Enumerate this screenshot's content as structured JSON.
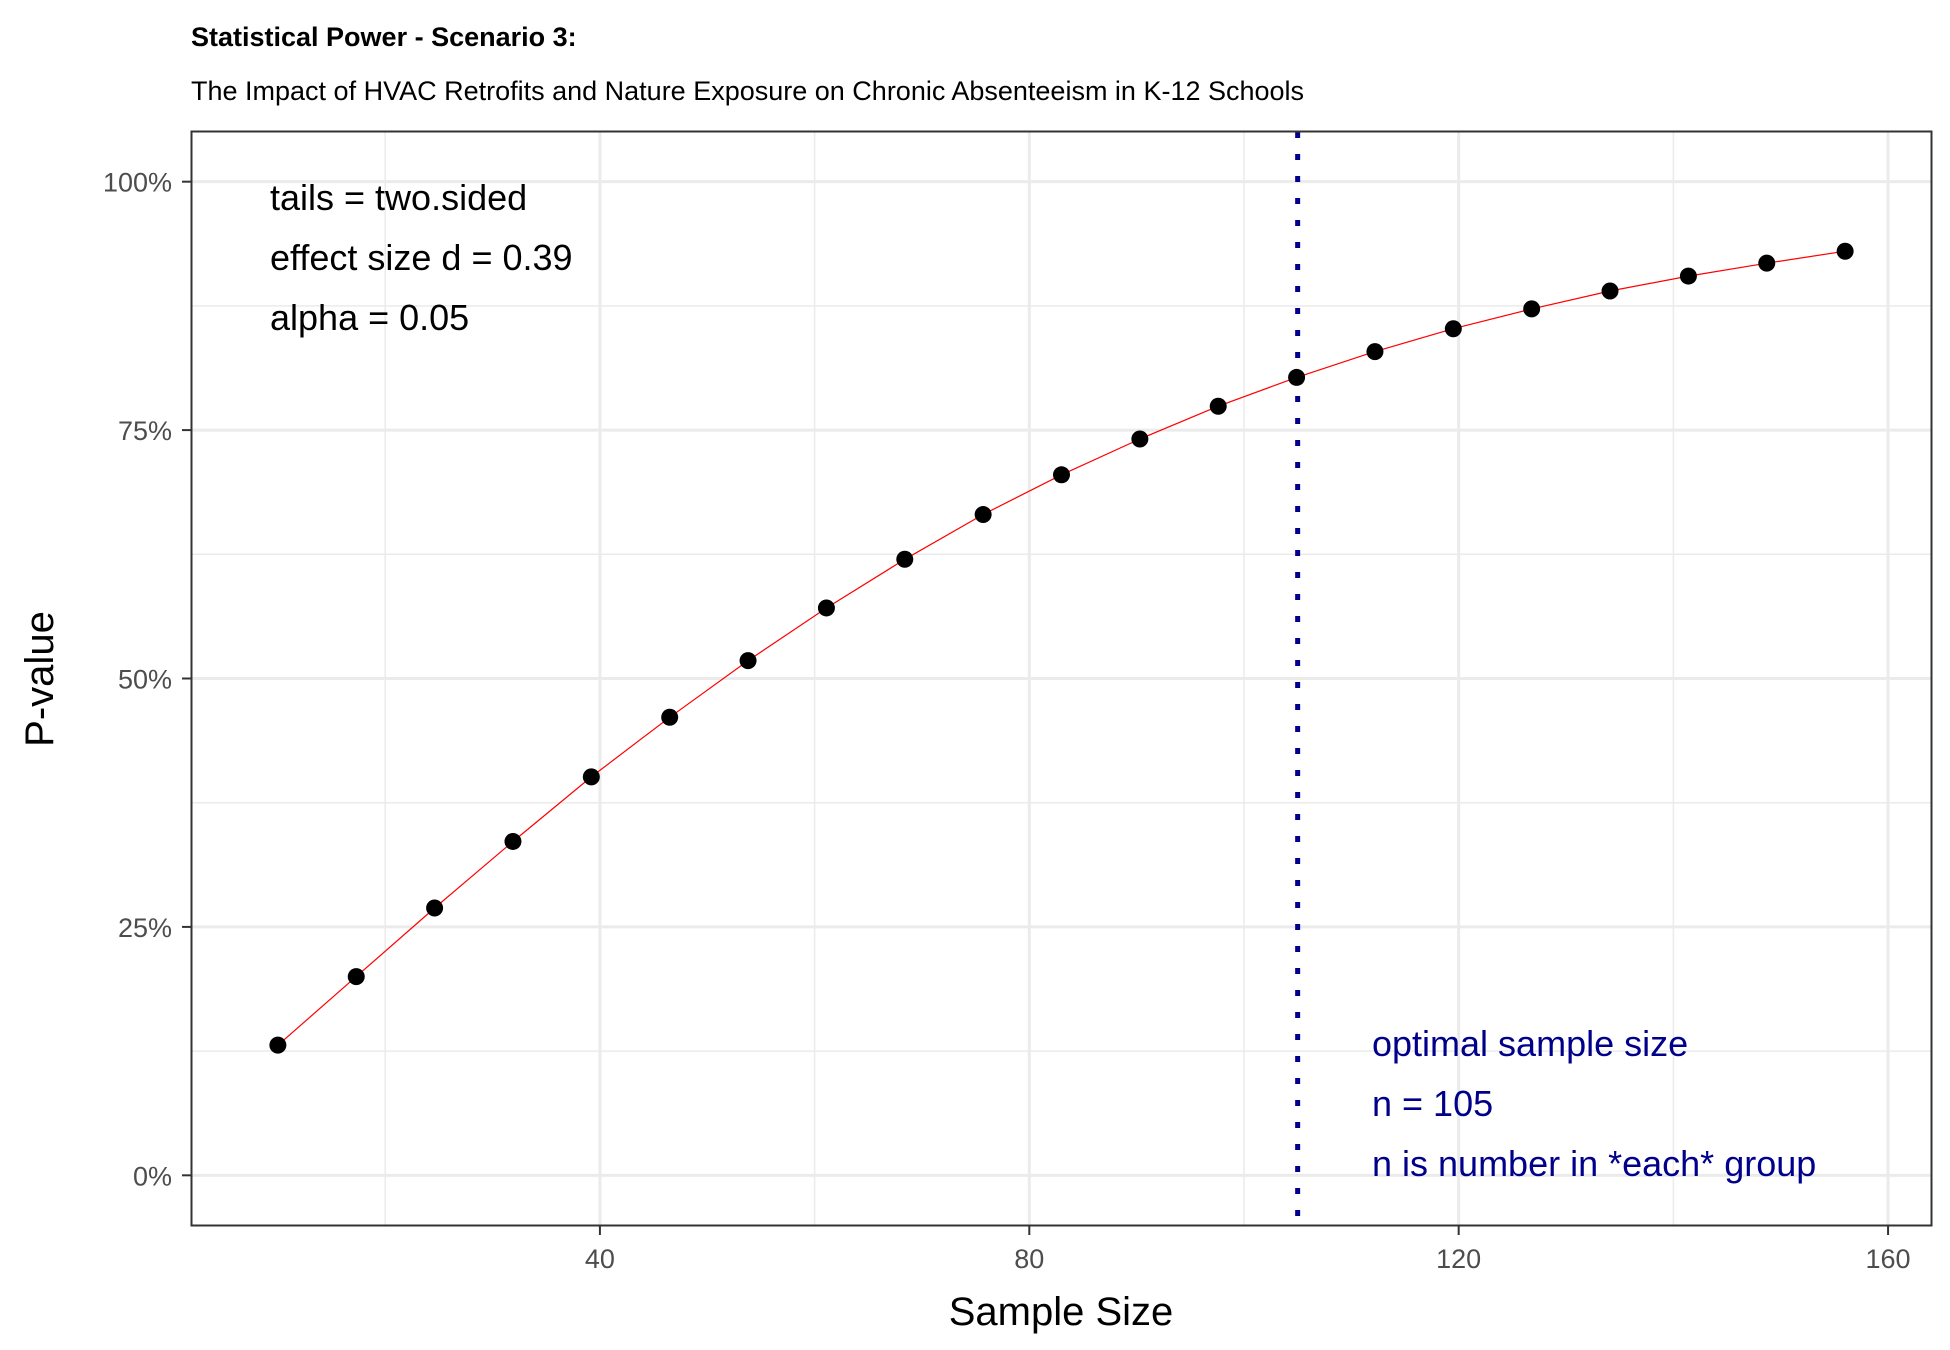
{
  "chart_data": {
    "type": "scatter",
    "title": "Statistical Power - Scenario 3:",
    "subtitle": "The Impact of HVAC Retrofits and Nature Exposure on Chronic Absenteeism in K-12 Schools",
    "xlabel": "Sample Size",
    "ylabel": "P-value",
    "xlim": [
      2,
      164
    ],
    "ylim": [
      -0.05,
      1.05
    ],
    "x_ticks": [
      40,
      80,
      120,
      160
    ],
    "y_ticks": [
      0,
      0.25,
      0.5,
      0.75,
      1.0
    ],
    "y_tick_labels": [
      "0%",
      "25%",
      "50%",
      "75%",
      "100%"
    ],
    "grid": true,
    "line_color": "#ff0000",
    "point_color": "#000000",
    "reference_line": {
      "x": 105,
      "color": "#00008b",
      "style": "dotted"
    },
    "annotations_left": [
      "tails = two.sided",
      "effect size d = 0.39",
      "alpha = 0.05"
    ],
    "annotations_right": [
      "optimal sample size",
      "n = 105",
      "n is number in *each* group"
    ],
    "series": [
      {
        "x": [
          10,
          17.3,
          24.6,
          31.9,
          39.2,
          46.5,
          53.8,
          61.1,
          68.4,
          75.7,
          83,
          90.3,
          97.6,
          104.9,
          112.2,
          119.5,
          126.8,
          134.1,
          141.4,
          148.7,
          156
        ],
        "values": [
          0.131,
          0.2,
          0.269,
          0.336,
          0.401,
          0.461,
          0.518,
          0.571,
          0.62,
          0.665,
          0.705,
          0.741,
          0.774,
          0.803,
          0.829,
          0.852,
          0.872,
          0.89,
          0.905,
          0.918,
          0.93
        ]
      }
    ]
  }
}
